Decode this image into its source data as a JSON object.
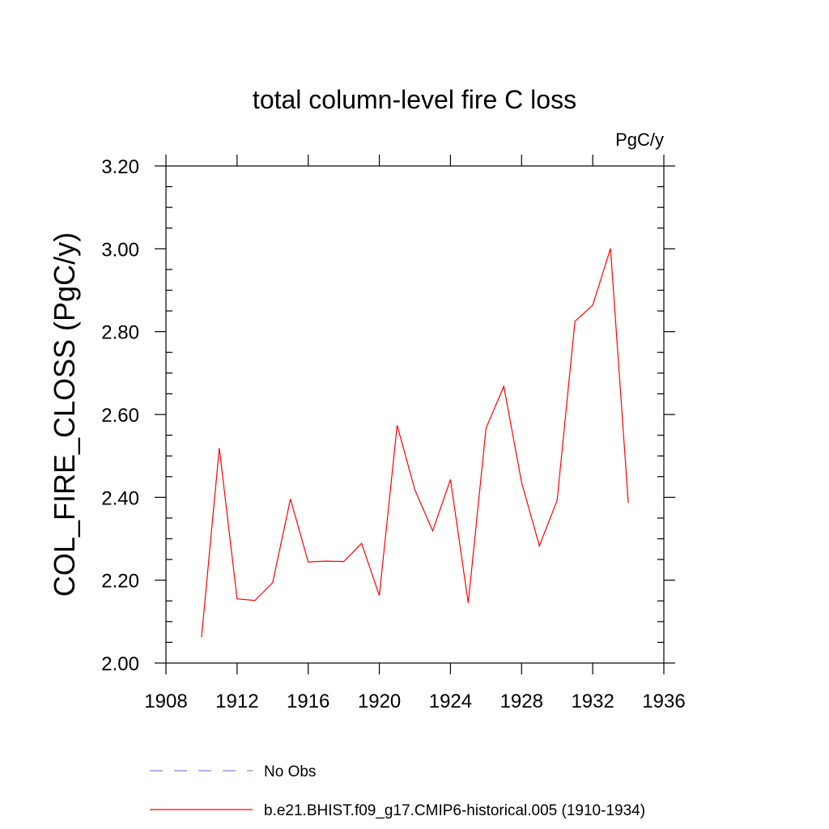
{
  "chart_data": {
    "type": "line",
    "title": "total column-level fire C loss",
    "units": "PgC/y",
    "xlabel": "",
    "ylabel": "COL_FIRE_CLOSS  (PgC/y)",
    "xlim": [
      1908,
      1936
    ],
    "ylim": [
      2.0,
      3.2
    ],
    "x_ticks": [
      1908,
      1912,
      1916,
      1920,
      1924,
      1928,
      1932,
      1936
    ],
    "x_tick_labels": [
      "1908",
      "1912",
      "1916",
      "1920",
      "1924",
      "1928",
      "1932",
      "1936"
    ],
    "y_ticks": [
      2.0,
      2.2,
      2.4,
      2.6,
      2.8,
      3.0,
      3.2
    ],
    "y_tick_labels": [
      "2.00",
      "2.20",
      "2.40",
      "2.60",
      "2.80",
      "3.00",
      "3.20"
    ],
    "grid": false,
    "legend_position": "bottom",
    "series": [
      {
        "name": "b.e21.BHIST.f09_g17.CMIP6-historical.005 (1910-1934)",
        "color": "#ff0000",
        "style": "solid",
        "x": [
          1910,
          1911,
          1912,
          1913,
          1914,
          1915,
          1916,
          1917,
          1918,
          1919,
          1920,
          1921,
          1922,
          1923,
          1924,
          1925,
          1926,
          1927,
          1928,
          1929,
          1930,
          1931,
          1932,
          1933,
          1934
        ],
        "values": [
          2.062,
          2.519,
          2.155,
          2.151,
          2.194,
          2.396,
          2.244,
          2.246,
          2.245,
          2.289,
          2.163,
          2.574,
          2.418,
          2.319,
          2.443,
          2.145,
          2.567,
          2.668,
          2.436,
          2.283,
          2.393,
          2.825,
          2.864,
          3.001,
          2.387
        ]
      }
    ],
    "legend": [
      {
        "label": "No Obs",
        "color": "#8080e0",
        "style": "dashed"
      },
      {
        "label": "b.e21.BHIST.f09_g17.CMIP6-historical.005 (1910-1934)",
        "color": "#ff0000",
        "style": "solid"
      }
    ]
  }
}
